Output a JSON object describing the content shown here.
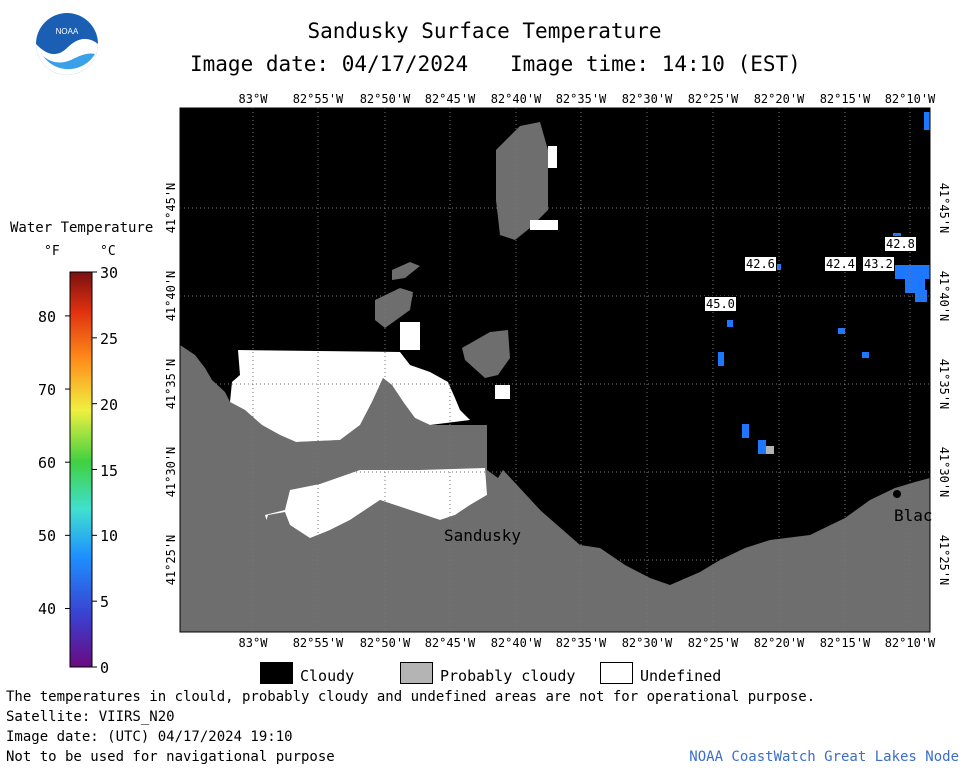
{
  "header": {
    "title": "Sandusky Surface Temperature",
    "image_date": "Image date: 04/17/2024",
    "image_time": "Image time: 14:10 (EST)",
    "logo_text": "NOAA"
  },
  "colorbar": {
    "title": "Water Temperature",
    "unit_f": "°F",
    "unit_c": "°C",
    "f_ticks": [
      "80",
      "70",
      "60",
      "50",
      "40"
    ],
    "c_ticks": [
      "30",
      "25",
      "20",
      "15",
      "10",
      "5",
      "0"
    ]
  },
  "map": {
    "lon_labels": [
      "83°W",
      "82°55'W",
      "82°50'W",
      "82°45'W",
      "82°40'W",
      "82°35'W",
      "82°30'W",
      "82°25'W",
      "82°20'W",
      "82°15'W",
      "82°10'W"
    ],
    "lat_labels": [
      "41°45'N",
      "41°40'N",
      "41°35'N",
      "41°30'N",
      "41°25'N"
    ],
    "temperature_labels": [
      "42.8",
      "42.6",
      "42.4",
      "43.2",
      "45.0"
    ],
    "place_labels": [
      "Sandusky",
      "Blac"
    ],
    "colors": {
      "land": "#6e6e6e",
      "cloud": "#000000",
      "probably_cloudy": "#b4b4b4",
      "undefined": "#ffffff",
      "water_temp": "#1e78ff"
    }
  },
  "legend": {
    "cloudy": "Cloudy",
    "probably_cloudy": "Probably cloudy",
    "undefined": "Undefined"
  },
  "footer": {
    "disclaimer": "The temperatures in clould, probably cloudy and undefined areas are not for operational purpose.",
    "satellite": "Satellite: VIIRS_N20",
    "utc_date": "Image date: (UTC) 04/17/2024  19:10",
    "nav_warning": "Not to be used for navigational purpose",
    "credit": "NOAA CoastWatch Great Lakes Node"
  }
}
